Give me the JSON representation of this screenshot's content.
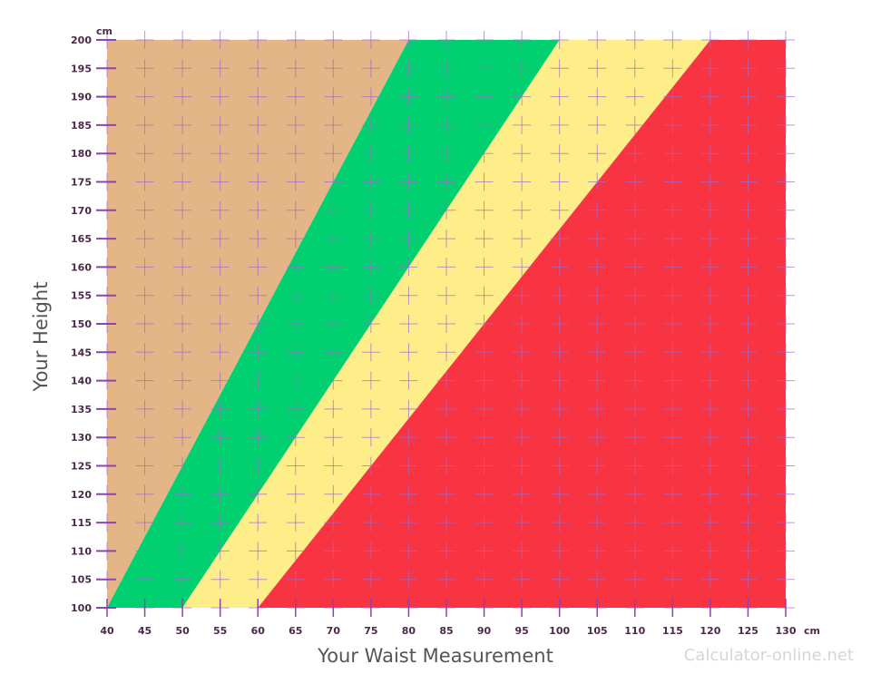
{
  "chart_data": {
    "type": "area",
    "xlabel": "Your Waist Measurement",
    "ylabel": "Your Height",
    "x_unit": "cm",
    "y_unit": "cm",
    "xlim": [
      40,
      130
    ],
    "ylim": [
      100,
      200
    ],
    "x_ticks": [
      40,
      45,
      50,
      55,
      60,
      65,
      70,
      75,
      80,
      85,
      90,
      95,
      100,
      105,
      110,
      115,
      120,
      125,
      130
    ],
    "y_ticks": [
      100,
      105,
      110,
      115,
      120,
      125,
      130,
      135,
      140,
      145,
      150,
      155,
      160,
      165,
      170,
      175,
      180,
      185,
      190,
      195,
      200
    ],
    "grid": true,
    "zones": [
      {
        "color": "#E3B587",
        "polygon": [
          [
            40,
            100
          ],
          [
            40,
            200
          ],
          [
            80,
            200
          ],
          [
            40,
            100
          ]
        ]
      },
      {
        "color": "#00D06F",
        "polygon": [
          [
            40,
            100
          ],
          [
            80,
            200
          ],
          [
            100,
            200
          ],
          [
            50,
            100
          ]
        ]
      },
      {
        "color": "#FDEE8A",
        "polygon": [
          [
            50,
            100
          ],
          [
            100,
            200
          ],
          [
            120,
            200
          ],
          [
            60,
            100
          ]
        ]
      },
      {
        "color": "#F83342",
        "polygon": [
          [
            60,
            100
          ],
          [
            120,
            200
          ],
          [
            130,
            200
          ],
          [
            130,
            100
          ]
        ]
      }
    ]
  },
  "colors": {
    "grid": "#a06ad0",
    "axis_tick": "#8e44ad"
  },
  "watermark": "Calculator-online.net"
}
